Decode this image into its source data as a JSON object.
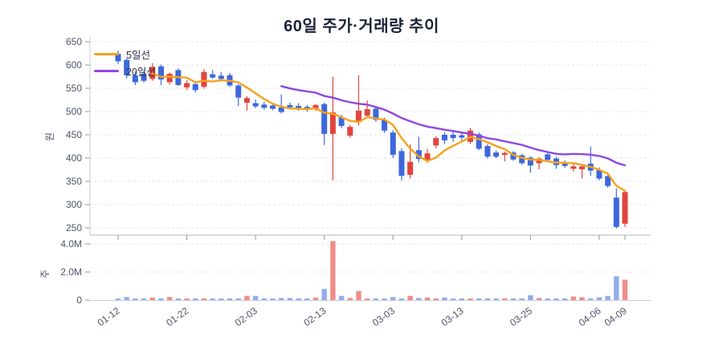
{
  "title": "60일 주가·거래량 추이",
  "legend": {
    "ma5": {
      "label": "5일선",
      "color": "#f6a21c"
    },
    "ma20": {
      "label": "20일선",
      "color": "#8f46e2"
    }
  },
  "colors": {
    "up": "#e2443e",
    "down": "#3d67dd",
    "volume_up": "#ef8d89",
    "volume_down": "#93acec",
    "ma5": "#f6a21c",
    "ma20": "#8f46e2",
    "grid": "#e4e5ea",
    "axis_line": "#c9ced7",
    "tick_mark": "#8f96a3",
    "tick_text": "#4c5566",
    "title_text": "#1b2236"
  },
  "chart_data": {
    "type": "candlestick+volume",
    "title": "60일 주가·거래량 추이",
    "grid": true,
    "legend_position": "top-left",
    "x": {
      "n": 60,
      "tick_indices": [
        0,
        8,
        16,
        24,
        32,
        40,
        48,
        56,
        59
      ],
      "tick_labels": [
        "01-12",
        "01-22",
        "02-03",
        "02-13",
        "03-03",
        "03-13",
        "03-25",
        "04-06",
        "04-09"
      ]
    },
    "price": {
      "ylabel": "원",
      "ylim": [
        250,
        650
      ],
      "yticks": [
        650,
        600,
        550,
        500,
        450,
        400,
        350,
        300,
        250
      ],
      "ohlc": [
        [
          624,
          631,
          602,
          608
        ],
        [
          611,
          614,
          571,
          578
        ],
        [
          578,
          586,
          557,
          563
        ],
        [
          581,
          589,
          562,
          566
        ],
        [
          570,
          604,
          566,
          596
        ],
        [
          597,
          601,
          557,
          569
        ],
        [
          563,
          584,
          558,
          581
        ],
        [
          589,
          593,
          555,
          557
        ],
        [
          552,
          567,
          546,
          561
        ],
        [
          559,
          562,
          541,
          546
        ],
        [
          553,
          591,
          549,
          585
        ],
        [
          580,
          589,
          570,
          573
        ],
        [
          577,
          585,
          567,
          570
        ],
        [
          578,
          583,
          553,
          556
        ],
        [
          556,
          559,
          512,
          530
        ],
        [
          519,
          533,
          502,
          529
        ],
        [
          518,
          526,
          507,
          511
        ],
        [
          515,
          521,
          504,
          508
        ],
        [
          513,
          518,
          503,
          506
        ],
        [
          509,
          537,
          496,
          499
        ],
        [
          514,
          519,
          506,
          509
        ],
        [
          512,
          518,
          502,
          507
        ],
        [
          510,
          514,
          500,
          505
        ],
        [
          506,
          516,
          501,
          514
        ],
        [
          516,
          519,
          428,
          452
        ],
        [
          452,
          575,
          352,
          498
        ],
        [
          488,
          493,
          464,
          469
        ],
        [
          448,
          471,
          444,
          467
        ],
        [
          477,
          578,
          470,
          502
        ],
        [
          491,
          524,
          486,
          505
        ],
        [
          506,
          510,
          478,
          482
        ],
        [
          482,
          487,
          454,
          459
        ],
        [
          455,
          460,
          400,
          407
        ],
        [
          415,
          421,
          352,
          362
        ],
        [
          364,
          430,
          356,
          392
        ],
        [
          417,
          446,
          391,
          398
        ],
        [
          396,
          420,
          390,
          410
        ],
        [
          427,
          447,
          421,
          443
        ],
        [
          450,
          455,
          430,
          438
        ],
        [
          450,
          460,
          435,
          443
        ],
        [
          449,
          457,
          436,
          444
        ],
        [
          435,
          465,
          430,
          459
        ],
        [
          451,
          455,
          417,
          420
        ],
        [
          426,
          430,
          399,
          403
        ],
        [
          412,
          416,
          400,
          403
        ],
        [
          407,
          414,
          393,
          411
        ],
        [
          412,
          415,
          394,
          397
        ],
        [
          406,
          409,
          385,
          389
        ],
        [
          401,
          404,
          369,
          384
        ],
        [
          389,
          402,
          376,
          399
        ],
        [
          408,
          413,
          392,
          396
        ],
        [
          399,
          403,
          377,
          385
        ],
        [
          389,
          395,
          379,
          383
        ],
        [
          377,
          391,
          371,
          382
        ],
        [
          376,
          384,
          356,
          382
        ],
        [
          388,
          425,
          362,
          373
        ],
        [
          374,
          380,
          352,
          356
        ],
        [
          361,
          366,
          336,
          340
        ],
        [
          315,
          335,
          249,
          252
        ],
        [
          259,
          332,
          252,
          327
        ]
      ]
    },
    "volume": {
      "ylabel": "주",
      "unit": "millions",
      "ymax": 4.0,
      "yticks": [
        {
          "value": 4.0,
          "label": "4.0M"
        },
        {
          "value": 2.0,
          "label": "2.0M"
        },
        {
          "value": 0,
          "label": "0"
        }
      ],
      "values": [
        0.1,
        0.22,
        0.1,
        0.07,
        0.18,
        0.12,
        0.22,
        0.1,
        0.08,
        0.06,
        0.12,
        0.05,
        0.05,
        0.1,
        0.1,
        0.3,
        0.3,
        0.06,
        0.08,
        0.15,
        0.15,
        0.12,
        0.08,
        0.18,
        0.8,
        4.2,
        0.3,
        0.15,
        0.65,
        0.1,
        0.1,
        0.08,
        0.22,
        0.1,
        0.3,
        0.15,
        0.18,
        0.08,
        0.18,
        0.06,
        0.1,
        0.08,
        0.06,
        0.08,
        0.06,
        0.05,
        0.08,
        0.08,
        0.35,
        0.15,
        0.08,
        0.05,
        0.08,
        0.25,
        0.2,
        0.12,
        0.2,
        0.3,
        1.7,
        1.45
      ]
    },
    "overlays": [
      {
        "name": "5일선",
        "type": "sma",
        "window": 5,
        "color": "#f6a21c"
      },
      {
        "name": "20일선",
        "type": "sma",
        "window": 20,
        "color": "#8f46e2"
      }
    ]
  }
}
